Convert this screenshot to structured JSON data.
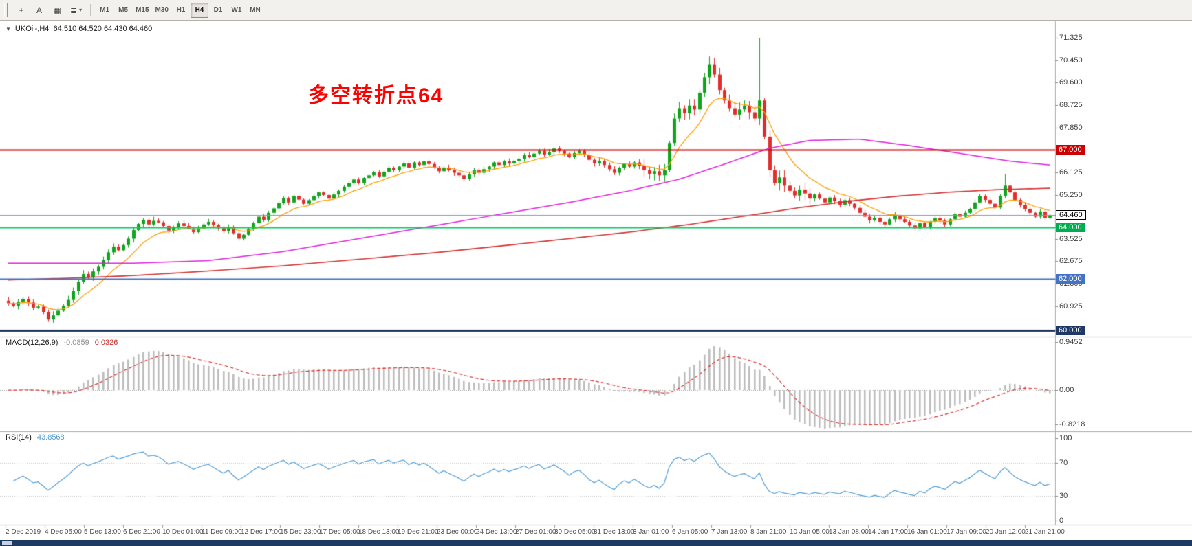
{
  "toolbar": {
    "icon_buttons": [
      {
        "name": "crosshair",
        "glyph": "+"
      },
      {
        "name": "text-tool",
        "glyph": "A"
      },
      {
        "name": "objects",
        "glyph": "▦"
      },
      {
        "name": "indicators",
        "glyph": "≣",
        "dropdown": "▾"
      }
    ],
    "timeframes": [
      "M1",
      "M5",
      "M15",
      "M30",
      "H1",
      "H4",
      "D1",
      "W1",
      "MN"
    ],
    "active_timeframe": "H4"
  },
  "chart": {
    "symbol_line": "UKOil-,H4  64.510 64.520 64.430 64.460",
    "annotation": {
      "text": "多空转折点64",
      "color": "#ff0000"
    }
  },
  "indicators": {
    "macd": {
      "label": "MACD(12,26,9)",
      "value_main": "-0.0859",
      "value_signal": "0.0326",
      "axis_top": "0.9452",
      "axis_zero": "0.00",
      "axis_bottom": "-0.8218"
    },
    "rsi": {
      "label": "RSI(14)",
      "value": "43.8568",
      "axis": [
        "100",
        "70",
        "30",
        "0"
      ]
    }
  },
  "chart_data": {
    "type": "candlestick",
    "symbol": "UKOil-",
    "timeframe": "H4",
    "current": {
      "open": 64.51,
      "high": 64.52,
      "low": 64.43,
      "close": 64.46
    },
    "first_open": 61.15,
    "closes": [
      61.05,
      60.95,
      61.1,
      61.22,
      61.08,
      60.88,
      60.92,
      60.7,
      60.42,
      60.58,
      60.76,
      60.95,
      61.18,
      61.52,
      61.88,
      62.18,
      62.05,
      62.28,
      62.46,
      62.72,
      63.02,
      63.24,
      63.1,
      63.3,
      63.55,
      63.88,
      64.12,
      64.28,
      64.1,
      64.24,
      64.18,
      64.04,
      63.86,
      64.0,
      64.14,
      64.04,
      63.94,
      63.8,
      63.95,
      64.1,
      64.2,
      64.08,
      63.95,
      63.84,
      64.0,
      63.76,
      63.55,
      63.7,
      63.92,
      64.15,
      64.4,
      64.28,
      64.55,
      64.72,
      64.92,
      65.12,
      64.95,
      65.2,
      65.06,
      64.9,
      65.04,
      65.2,
      65.34,
      65.24,
      65.1,
      65.26,
      65.4,
      65.56,
      65.7,
      65.84,
      65.7,
      65.9,
      66.0,
      66.12,
      65.96,
      66.14,
      66.3,
      66.2,
      66.34,
      66.46,
      66.3,
      66.5,
      66.4,
      66.54,
      66.44,
      66.3,
      66.16,
      66.3,
      66.2,
      66.1,
      66.0,
      65.86,
      66.04,
      66.2,
      66.1,
      66.24,
      66.34,
      66.5,
      66.4,
      66.54,
      66.46,
      66.56,
      66.64,
      66.78,
      66.7,
      66.84,
      66.94,
      66.8,
      66.9,
      67.04,
      66.94,
      66.84,
      66.7,
      66.86,
      66.94,
      66.8,
      66.6,
      66.46,
      66.56,
      66.4,
      66.24,
      66.1,
      66.3,
      66.44,
      66.34,
      66.5,
      66.36,
      66.2,
      66.06,
      66.16,
      66.0,
      66.2,
      67.25,
      68.2,
      68.6,
      68.4,
      68.7,
      68.55,
      69.2,
      69.8,
      70.3,
      69.9,
      69.3,
      68.9,
      68.6,
      68.35,
      68.55,
      68.7,
      68.44,
      68.2,
      68.9,
      67.5,
      66.2,
      65.7,
      65.92,
      65.6,
      65.4,
      65.22,
      65.45,
      65.3,
      65.1,
      65.26,
      65.1,
      64.95,
      65.14,
      65.0,
      64.86,
      65.04,
      64.9,
      64.74,
      64.55,
      64.4,
      64.26,
      64.36,
      64.2,
      64.1,
      64.3,
      64.46,
      64.3,
      64.2,
      64.06,
      63.95,
      64.15,
      64.0,
      64.2,
      64.34,
      64.25,
      64.1,
      64.3,
      64.5,
      64.4,
      64.55,
      64.7,
      64.95,
      65.2,
      65.05,
      64.9,
      64.75,
      65.2,
      65.6,
      65.34,
      65.05,
      64.85,
      64.7,
      64.55,
      64.4,
      64.6,
      64.35,
      64.46
    ],
    "specials": {
      "132": {
        "low": 66.12
      },
      "140": {
        "high": 70.6
      },
      "150": {
        "high": 71.325
      },
      "199": {
        "high": 66.05
      }
    },
    "price_axis": {
      "min": 60.0,
      "max": 71.325,
      "tick_labels": [
        "71.325",
        "70.450",
        "69.600",
        "68.725",
        "67.850",
        "66.125",
        "65.250",
        "63.525",
        "62.675",
        "61.800",
        "60.925"
      ],
      "tick_values": [
        71.325,
        70.45,
        69.6,
        68.725,
        67.85,
        66.125,
        65.25,
        63.525,
        62.675,
        61.8,
        60.925
      ]
    },
    "levels": [
      {
        "value": 67.0,
        "label": "67.000",
        "line_color": "#cc0000",
        "width": 2,
        "box_bg": "#cc0000",
        "box_fg": "#ffffff"
      },
      {
        "value": 64.46,
        "label": "64.460",
        "line_color": "#7e9ab2",
        "width": 1,
        "box_bg": "#ffffff",
        "box_fg": "#000000",
        "box_border": "#000000"
      },
      {
        "value": 64.0,
        "label": "64.000",
        "line_color": "#00cf63",
        "width": 2,
        "box_bg": "#00ad52",
        "box_fg": "#ffffff"
      },
      {
        "value": 62.0,
        "label": "62.000",
        "line_color": "#4472c4",
        "width": 2,
        "box_bg": "#4472c4",
        "box_fg": "#ffffff"
      },
      {
        "value": 60.0,
        "label": "60.000",
        "line_color": "#1f3864",
        "width": 3,
        "box_bg": "#1f3864",
        "box_fg": "#ffffff"
      }
    ],
    "ma": {
      "fast": {
        "type": "ema",
        "period": 10,
        "color": "#ff9d00"
      },
      "mid": {
        "color": "#e01ee0",
        "anchors": [
          [
            0,
            62.6
          ],
          [
            25,
            62.6
          ],
          [
            40,
            62.7
          ],
          [
            55,
            63.05
          ],
          [
            70,
            63.55
          ],
          [
            85,
            64.05
          ],
          [
            100,
            64.55
          ],
          [
            112,
            64.95
          ],
          [
            124,
            65.4
          ],
          [
            134,
            65.85
          ],
          [
            144,
            66.5
          ],
          [
            152,
            67.05
          ],
          [
            160,
            67.35
          ],
          [
            170,
            67.4
          ],
          [
            180,
            67.15
          ],
          [
            190,
            66.85
          ],
          [
            200,
            66.55
          ],
          [
            208,
            66.4
          ]
        ]
      },
      "slow": {
        "color": "#d43030",
        "anchors": [
          [
            0,
            61.95
          ],
          [
            12,
            62.02
          ],
          [
            25,
            62.12
          ],
          [
            40,
            62.3
          ],
          [
            55,
            62.5
          ],
          [
            70,
            62.75
          ],
          [
            85,
            63.0
          ],
          [
            100,
            63.3
          ],
          [
            112,
            63.55
          ],
          [
            124,
            63.8
          ],
          [
            136,
            64.1
          ],
          [
            148,
            64.45
          ],
          [
            158,
            64.75
          ],
          [
            168,
            65.0
          ],
          [
            178,
            65.2
          ],
          [
            188,
            65.35
          ],
          [
            198,
            65.45
          ],
          [
            208,
            65.5
          ]
        ]
      }
    },
    "macd": {
      "fast": 12,
      "slow": 26,
      "signal": 9,
      "hist_color": "#bdbdbd",
      "signal_color": "#e03030",
      "current_main": -0.0859,
      "current_signal": 0.0326,
      "axis_top": 0.9452,
      "axis_bottom": -0.8218
    },
    "rsi": {
      "period": 14,
      "color": "#4f9bd5",
      "levels": [
        70,
        30
      ],
      "current": 43.8568
    },
    "x_labels": [
      "2 Dec 2019",
      "4 Dec 05:00",
      "5 Dec 13:00",
      "6 Dec 21:00",
      "10 Dec 01:00",
      "11 Dec 09:00",
      "12 Dec 17:00",
      "15 Dec 23:00",
      "17 Dec 05:00",
      "18 Dec 13:00",
      "19 Dec 21:00",
      "23 Dec 00:00",
      "24 Dec 13:00",
      "27 Dec 01:00",
      "30 Dec 05:00",
      "31 Dec 13:00",
      "3 Jan 01:00",
      "6 Jan 05:00",
      "7 Jan 13:00",
      "8 Jan 21:00",
      "10 Jan 05:00",
      "13 Jan 08:00",
      "14 Jan 17:00",
      "16 Jan 01:00",
      "17 Jan 09:00",
      "20 Jan 12:00",
      "21 Jan 21:00"
    ],
    "colors": {
      "up": "#10a51c",
      "down": "#e22d2d",
      "background": "#ffffff"
    }
  }
}
